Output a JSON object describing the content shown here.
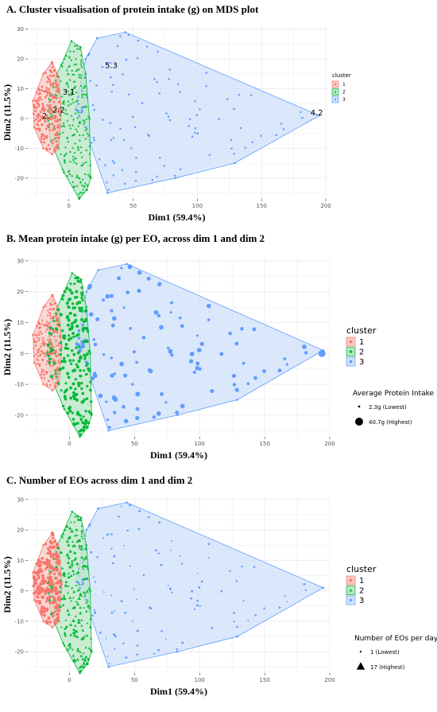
{
  "colors": {
    "cluster1": "#F8766D",
    "cluster2": "#00BA38",
    "cluster3": "#619CFF",
    "fill1": "#f7c9c4",
    "fill2": "#b8e6c4",
    "fill3": "#cfe0fb",
    "grid": "#ebebeb"
  },
  "chart_data": [
    {
      "type": "scatter",
      "title": "A. Cluster visualisation of protein intake (g) on MDS plot",
      "xlabel": "Dim1 (59.4%)",
      "ylabel": "Dim2 (11.5%)",
      "xlim": [
        -32,
        200
      ],
      "ylim": [
        -27,
        31
      ],
      "xticks": [
        0,
        50,
        100,
        150,
        200
      ],
      "yticks": [
        -20,
        -10,
        0,
        10,
        20,
        30
      ],
      "grid": true,
      "legend": {
        "title": "cluster",
        "position": "right",
        "entries": [
          "1",
          "2",
          "3"
        ],
        "size": "small"
      },
      "annotations": [
        {
          "text": "5.3",
          "x": 33,
          "y": 17
        },
        {
          "text": "3.1",
          "x": 0,
          "y": 8
        },
        {
          "text": "2.2",
          "x": -8,
          "y": 2
        },
        {
          "text": "2.",
          "x": -18,
          "y": 0
        },
        {
          "text": "4.2",
          "x": 193,
          "y": 1
        }
      ],
      "hulls": [
        {
          "cluster": "1",
          "points": [
            [
              -28,
              6
            ],
            [
              -20,
              15
            ],
            [
              -13,
              19
            ],
            [
              -8,
              14
            ],
            [
              -6,
              2
            ],
            [
              -8,
              -10
            ],
            [
              -13,
              -12
            ],
            [
              -20,
              -10
            ],
            [
              -27,
              -3
            ]
          ]
        },
        {
          "cluster": "2",
          "points": [
            [
              -15,
              10
            ],
            [
              -6,
              18
            ],
            [
              2,
              26
            ],
            [
              9,
              24
            ],
            [
              13,
              15
            ],
            [
              16,
              0
            ],
            [
              17,
              -20
            ],
            [
              14,
              -24
            ],
            [
              8,
              -27
            ],
            [
              -4,
              -18
            ],
            [
              -14,
              -8
            ],
            [
              -17,
              0
            ]
          ]
        },
        {
          "cluster": "3",
          "points": [
            [
              5,
              3
            ],
            [
              13,
              20
            ],
            [
              22,
              27
            ],
            [
              44,
              29
            ],
            [
              195,
              1
            ],
            [
              129,
              -15
            ],
            [
              83,
              -20
            ],
            [
              30,
              -25
            ],
            [
              12,
              -3
            ]
          ]
        }
      ]
    },
    {
      "type": "scatter",
      "title": "B. Mean protein intake (g) per EO, across dim 1 and dim 2",
      "xlabel": "Dim1 (59.4%)",
      "ylabel": "Dim2 (11.5%)",
      "xlim": [
        -32,
        200
      ],
      "ylim": [
        -27,
        31
      ],
      "xticks": [
        0,
        50,
        100,
        150,
        200
      ],
      "yticks": [
        -20,
        -10,
        0,
        10,
        20,
        30
      ],
      "grid": true,
      "legend": {
        "title": "cluster",
        "position": "right",
        "entries": [
          "1",
          "2",
          "3"
        ],
        "size": "large"
      },
      "size_legend": {
        "title": "Average Protein Intake",
        "entries": [
          "2.3g (Lowest)",
          "40.7g (Highest)"
        ]
      },
      "hulls": [
        {
          "cluster": "1",
          "points": [
            [
              -28,
              6
            ],
            [
              -20,
              15
            ],
            [
              -13,
              19
            ],
            [
              -8,
              14
            ],
            [
              -6,
              2
            ],
            [
              -8,
              -10
            ],
            [
              -13,
              -12
            ],
            [
              -20,
              -10
            ],
            [
              -27,
              -3
            ]
          ]
        },
        {
          "cluster": "2",
          "points": [
            [
              -15,
              10
            ],
            [
              -6,
              18
            ],
            [
              2,
              26
            ],
            [
              9,
              24
            ],
            [
              13,
              15
            ],
            [
              16,
              0
            ],
            [
              17,
              -20
            ],
            [
              14,
              -24
            ],
            [
              8,
              -27
            ],
            [
              -4,
              -18
            ],
            [
              -14,
              -8
            ],
            [
              -17,
              0
            ]
          ]
        },
        {
          "cluster": "3",
          "points": [
            [
              5,
              3
            ],
            [
              13,
              20
            ],
            [
              22,
              27
            ],
            [
              44,
              29
            ],
            [
              195,
              1
            ],
            [
              129,
              -15
            ],
            [
              83,
              -20
            ],
            [
              30,
              -25
            ],
            [
              12,
              -3
            ]
          ]
        }
      ]
    },
    {
      "type": "scatter",
      "title": "C. Number of EOs across dim 1 and dim 2",
      "xlabel": "Dim1 (59.4%)",
      "ylabel": "Dim2 (11.5%)",
      "xlim": [
        -32,
        200
      ],
      "ylim": [
        -27,
        31
      ],
      "xticks": [
        0,
        50,
        100,
        150,
        200
      ],
      "yticks": [
        -20,
        -10,
        0,
        10,
        20,
        30
      ],
      "grid": true,
      "legend": {
        "title": "cluster",
        "position": "right",
        "entries": [
          "1",
          "2",
          "3"
        ],
        "size": "large"
      },
      "size_legend": {
        "title": "Number of EOs per day",
        "entries": [
          "1 (Lowest)",
          "17 (Highest)"
        ]
      },
      "hulls": [
        {
          "cluster": "1",
          "points": [
            [
              -28,
              6
            ],
            [
              -20,
              15
            ],
            [
              -13,
              19
            ],
            [
              -8,
              14
            ],
            [
              -6,
              2
            ],
            [
              -8,
              -10
            ],
            [
              -13,
              -12
            ],
            [
              -20,
              -10
            ],
            [
              -27,
              -3
            ]
          ]
        },
        {
          "cluster": "2",
          "points": [
            [
              -15,
              10
            ],
            [
              -6,
              18
            ],
            [
              2,
              26
            ],
            [
              9,
              24
            ],
            [
              13,
              15
            ],
            [
              16,
              0
            ],
            [
              17,
              -20
            ],
            [
              14,
              -24
            ],
            [
              8,
              -27
            ],
            [
              -4,
              -18
            ],
            [
              -14,
              -8
            ],
            [
              -17,
              0
            ]
          ]
        },
        {
          "cluster": "3",
          "points": [
            [
              5,
              3
            ],
            [
              13,
              20
            ],
            [
              22,
              27
            ],
            [
              44,
              29
            ],
            [
              195,
              1
            ],
            [
              129,
              -15
            ],
            [
              83,
              -20
            ],
            [
              30,
              -25
            ],
            [
              12,
              -3
            ]
          ]
        }
      ]
    }
  ]
}
